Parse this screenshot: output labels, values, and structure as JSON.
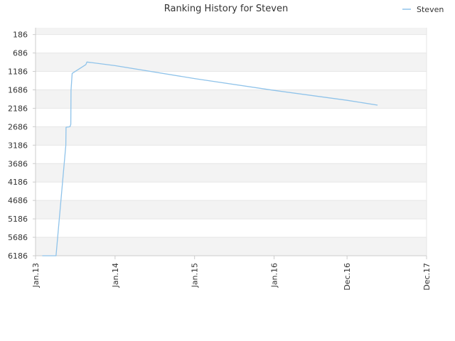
{
  "chart_data": {
    "type": "line",
    "title": "Ranking History for Steven",
    "xlabel": "",
    "ylabel": "",
    "legend": {
      "position": "top-right",
      "entries": [
        "Steven"
      ]
    },
    "grid": true,
    "y_inverted": true,
    "ylim": [
      6186,
      0
    ],
    "yticks": [
      186,
      686,
      1186,
      1686,
      2186,
      2686,
      3186,
      3686,
      4186,
      4686,
      5186,
      5686,
      6186
    ],
    "ytick_labels": [
      "186",
      "686",
      "1186",
      "1686",
      "2186",
      "2686",
      "3186",
      "3686",
      "4186",
      "4686",
      "5186",
      "5686",
      "6186"
    ],
    "xlim": [
      "2013-01-01",
      "2017-12-01"
    ],
    "xticks": [
      "2013-01-01",
      "2014-01-01",
      "2015-01-01",
      "2016-01-01",
      "2016-12-01",
      "2017-12-01"
    ],
    "xtick_labels": [
      "Jan.13",
      "Jan.14",
      "Jan.15",
      "Jan.16",
      "Dec.16",
      "Dec.17"
    ],
    "colors": {
      "series": "#8fc3ea",
      "band": "#f3f3f3",
      "grid": "#e6e6e6",
      "axis": "#cccccc"
    },
    "series": [
      {
        "name": "Steven",
        "points": [
          {
            "x": "2013-02-01",
            "y": 6186
          },
          {
            "x": "2013-04-05",
            "y": 6186
          },
          {
            "x": "2013-05-20",
            "y": 3186
          },
          {
            "x": "2013-05-21",
            "y": 2700
          },
          {
            "x": "2013-06-08",
            "y": 2686
          },
          {
            "x": "2013-06-12",
            "y": 2620
          },
          {
            "x": "2013-06-13",
            "y": 1700
          },
          {
            "x": "2013-06-18",
            "y": 1240
          },
          {
            "x": "2013-08-20",
            "y": 1000
          },
          {
            "x": "2013-08-25",
            "y": 930
          },
          {
            "x": "2014-01-01",
            "y": 1030
          },
          {
            "x": "2015-01-01",
            "y": 1380
          },
          {
            "x": "2016-01-01",
            "y": 1700
          },
          {
            "x": "2016-12-01",
            "y": 1970
          },
          {
            "x": "2017-04-20",
            "y": 2100
          }
        ]
      }
    ]
  }
}
